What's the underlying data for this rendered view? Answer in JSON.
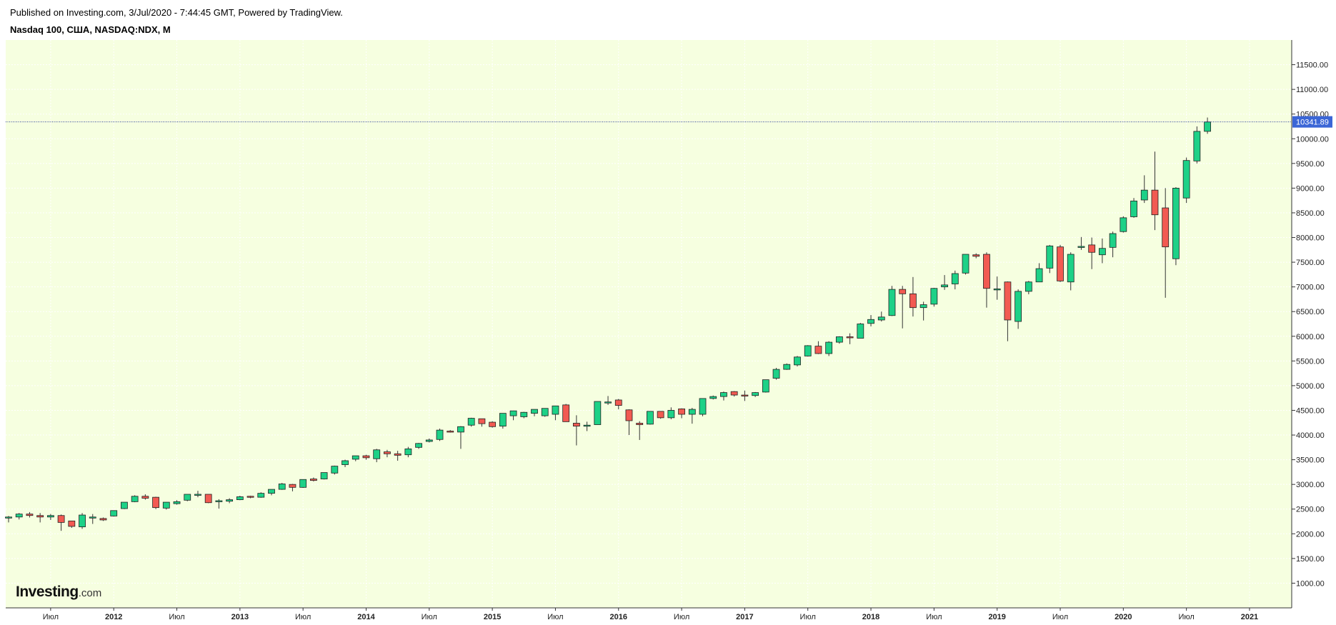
{
  "header": {
    "published": "Published on Investing.com, 3/Jul/2020 - 7:44:45 GMT, Powered by TradingView.",
    "symbol": "Nasdaq 100, США, NASDAQ:NDX, M"
  },
  "logo": {
    "brand": "Investing",
    "suffix": ".com"
  },
  "colors": {
    "background": "#f6ffe0",
    "up": "#1dd187",
    "down": "#f25a52",
    "wick": "#333333",
    "price_label": "#3b66d6",
    "price_line": "#2a3a9a"
  },
  "chart_data": {
    "type": "candlestick",
    "timeframe": "M",
    "ylim": [
      500,
      12000
    ],
    "yticks": [
      1000,
      1500,
      2000,
      2500,
      3000,
      3500,
      4000,
      4500,
      5000,
      5500,
      6000,
      6500,
      7000,
      7500,
      8000,
      8500,
      9000,
      9500,
      10000,
      10500,
      11000,
      11500
    ],
    "ytick_labels": [
      "1000.00",
      "1500.00",
      "2000.00",
      "2500.00",
      "3000.00",
      "3500.00",
      "4000.00",
      "4500.00",
      "5000.00",
      "5500.00",
      "6000.00",
      "6500.00",
      "7000.00",
      "7500.00",
      "8000.00",
      "8500.00",
      "9000.00",
      "9500.00",
      "10000.00",
      "10500.00",
      "11000.00",
      "11500.00"
    ],
    "x_labels": [
      {
        "label": "Июл",
        "index": 4,
        "bold": false
      },
      {
        "label": "2012",
        "index": 10,
        "bold": true
      },
      {
        "label": "Июл",
        "index": 16,
        "bold": false
      },
      {
        "label": "2013",
        "index": 22,
        "bold": true
      },
      {
        "label": "Июл",
        "index": 28,
        "bold": false
      },
      {
        "label": "2014",
        "index": 34,
        "bold": true
      },
      {
        "label": "Июл",
        "index": 40,
        "bold": false
      },
      {
        "label": "2015",
        "index": 46,
        "bold": true
      },
      {
        "label": "Июл",
        "index": 52,
        "bold": false
      },
      {
        "label": "2016",
        "index": 58,
        "bold": true
      },
      {
        "label": "Июл",
        "index": 64,
        "bold": false
      },
      {
        "label": "2017",
        "index": 70,
        "bold": true
      },
      {
        "label": "Июл",
        "index": 76,
        "bold": false
      },
      {
        "label": "2018",
        "index": 82,
        "bold": true
      },
      {
        "label": "Июл",
        "index": 88,
        "bold": false
      },
      {
        "label": "2019",
        "index": 94,
        "bold": true
      },
      {
        "label": "Июл",
        "index": 100,
        "bold": false
      },
      {
        "label": "2020",
        "index": 106,
        "bold": true
      },
      {
        "label": "Июл",
        "index": 112,
        "bold": false
      },
      {
        "label": "2021",
        "index": 118,
        "bold": true
      }
    ],
    "last_price": 10341.89,
    "last_price_label": "10341.89",
    "candles": [
      [
        2330,
        2360,
        2230,
        2340
      ],
      [
        2340,
        2420,
        2290,
        2400
      ],
      [
        2400,
        2440,
        2330,
        2370
      ],
      [
        2370,
        2420,
        2230,
        2340
      ],
      [
        2340,
        2400,
        2280,
        2370
      ],
      [
        2370,
        2390,
        2060,
        2230
      ],
      [
        2260,
        2250,
        2120,
        2150
      ],
      [
        2140,
        2420,
        2100,
        2380
      ],
      [
        2340,
        2400,
        2200,
        2340
      ],
      [
        2310,
        2330,
        2260,
        2280
      ],
      [
        2360,
        2470,
        2350,
        2470
      ],
      [
        2510,
        2640,
        2500,
        2640
      ],
      [
        2650,
        2780,
        2640,
        2760
      ],
      [
        2760,
        2800,
        2690,
        2720
      ],
      [
        2740,
        2750,
        2500,
        2530
      ],
      [
        2520,
        2630,
        2490,
        2640
      ],
      [
        2610,
        2680,
        2590,
        2650
      ],
      [
        2680,
        2800,
        2660,
        2800
      ],
      [
        2790,
        2870,
        2740,
        2800
      ],
      [
        2800,
        2800,
        2620,
        2630
      ],
      [
        2660,
        2700,
        2510,
        2670
      ],
      [
        2660,
        2720,
        2620,
        2690
      ],
      [
        2690,
        2770,
        2680,
        2750
      ],
      [
        2760,
        2770,
        2720,
        2740
      ],
      [
        2740,
        2840,
        2730,
        2820
      ],
      [
        2820,
        2900,
        2780,
        2900
      ],
      [
        2900,
        3030,
        2890,
        3010
      ],
      [
        3000,
        3010,
        2860,
        2940
      ],
      [
        2940,
        3080,
        2930,
        3100
      ],
      [
        3110,
        3140,
        3060,
        3080
      ],
      [
        3110,
        3210,
        3100,
        3240
      ],
      [
        3230,
        3380,
        3200,
        3370
      ],
      [
        3400,
        3500,
        3350,
        3480
      ],
      [
        3510,
        3580,
        3470,
        3580
      ],
      [
        3580,
        3600,
        3500,
        3540
      ],
      [
        3520,
        3720,
        3450,
        3700
      ],
      [
        3660,
        3700,
        3550,
        3620
      ],
      [
        3620,
        3680,
        3480,
        3590
      ],
      [
        3600,
        3760,
        3550,
        3720
      ],
      [
        3750,
        3840,
        3720,
        3830
      ],
      [
        3870,
        3930,
        3850,
        3900
      ],
      [
        3910,
        4130,
        3880,
        4100
      ],
      [
        4080,
        4100,
        4050,
        4060
      ],
      [
        4060,
        4180,
        3720,
        4170
      ],
      [
        4200,
        4350,
        4170,
        4340
      ],
      [
        4330,
        4310,
        4170,
        4230
      ],
      [
        4260,
        4280,
        4150,
        4170
      ],
      [
        4180,
        4440,
        4130,
        4440
      ],
      [
        4390,
        4490,
        4300,
        4490
      ],
      [
        4370,
        4470,
        4340,
        4460
      ],
      [
        4440,
        4490,
        4380,
        4520
      ],
      [
        4390,
        4500,
        4370,
        4540
      ],
      [
        4420,
        4560,
        4300,
        4590
      ],
      [
        4610,
        4630,
        4270,
        4270
      ],
      [
        4240,
        4400,
        3790,
        4180
      ],
      [
        4200,
        4270,
        4080,
        4200
      ],
      [
        4210,
        4680,
        4210,
        4680
      ],
      [
        4660,
        4790,
        4610,
        4670
      ],
      [
        4710,
        4730,
        4520,
        4600
      ],
      [
        4510,
        4520,
        4000,
        4290
      ],
      [
        4240,
        4280,
        3900,
        4210
      ],
      [
        4220,
        4480,
        4210,
        4480
      ],
      [
        4480,
        4480,
        4330,
        4350
      ],
      [
        4350,
        4560,
        4320,
        4500
      ],
      [
        4530,
        4540,
        4340,
        4420
      ],
      [
        4420,
        4550,
        4230,
        4520
      ],
      [
        4420,
        4740,
        4380,
        4740
      ],
      [
        4740,
        4800,
        4720,
        4780
      ],
      [
        4780,
        4880,
        4700,
        4860
      ],
      [
        4880,
        4890,
        4780,
        4810
      ],
      [
        4810,
        4900,
        4690,
        4800
      ],
      [
        4800,
        4870,
        4770,
        4860
      ],
      [
        4870,
        5120,
        4860,
        5120
      ],
      [
        5150,
        5360,
        5120,
        5330
      ],
      [
        5330,
        5450,
        5320,
        5430
      ],
      [
        5420,
        5600,
        5390,
        5580
      ],
      [
        5600,
        5820,
        5590,
        5810
      ],
      [
        5800,
        5900,
        5640,
        5650
      ],
      [
        5650,
        5900,
        5600,
        5880
      ],
      [
        5880,
        6000,
        5850,
        5990
      ],
      [
        5990,
        6060,
        5840,
        5970
      ],
      [
        5960,
        6270,
        5960,
        6250
      ],
      [
        6260,
        6430,
        6200,
        6340
      ],
      [
        6330,
        6500,
        6300,
        6390
      ],
      [
        6420,
        7020,
        6410,
        6950
      ],
      [
        6950,
        7020,
        6160,
        6860
      ],
      [
        6860,
        7200,
        6400,
        6580
      ],
      [
        6580,
        6700,
        6320,
        6640
      ],
      [
        6650,
        6980,
        6600,
        6970
      ],
      [
        7000,
        7240,
        6940,
        7040
      ],
      [
        7060,
        7330,
        6950,
        7270
      ],
      [
        7280,
        7660,
        7250,
        7660
      ],
      [
        7650,
        7680,
        7580,
        7620
      ],
      [
        7660,
        7700,
        6580,
        6970
      ],
      [
        6950,
        7210,
        6740,
        6960
      ],
      [
        7100,
        7110,
        5900,
        6330
      ],
      [
        6300,
        6950,
        6150,
        6910
      ],
      [
        6910,
        7120,
        6850,
        7100
      ],
      [
        7100,
        7480,
        7100,
        7370
      ],
      [
        7380,
        7850,
        7280,
        7830
      ],
      [
        7810,
        7850,
        7100,
        7120
      ],
      [
        7100,
        7700,
        6930,
        7660
      ],
      [
        7800,
        8010,
        7750,
        7820
      ],
      [
        7850,
        8000,
        7360,
        7700
      ],
      [
        7650,
        7980,
        7480,
        7780
      ],
      [
        7800,
        8120,
        7600,
        8080
      ],
      [
        8120,
        8430,
        8100,
        8400
      ],
      [
        8420,
        8800,
        8400,
        8740
      ],
      [
        8760,
        9260,
        8700,
        8960
      ],
      [
        8960,
        9740,
        8150,
        8460
      ],
      [
        8600,
        9000,
        6780,
        7810
      ],
      [
        7570,
        9020,
        7440,
        9000
      ],
      [
        8800,
        9620,
        8700,
        9560
      ],
      [
        9550,
        10250,
        9500,
        10150
      ],
      [
        10150,
        10430,
        10100,
        10340
      ]
    ]
  }
}
